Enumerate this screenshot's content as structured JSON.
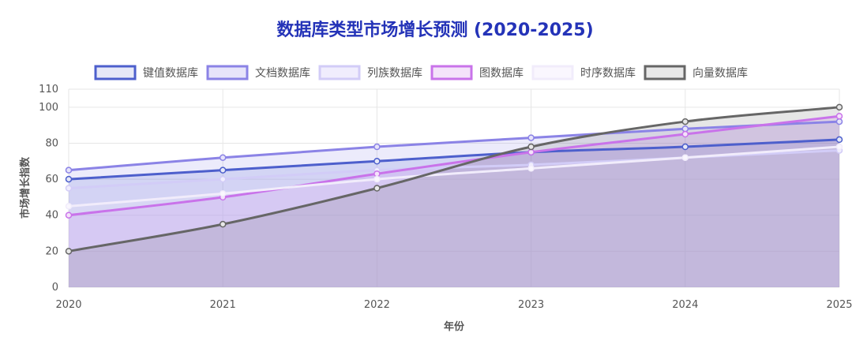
{
  "chart_data": {
    "type": "area",
    "title": "数据库类型市场增长预测 (2020-2025)",
    "xlabel": "年份",
    "ylabel": "市场增长指数",
    "ylim": [
      0,
      110
    ],
    "yticks": [
      0,
      20,
      40,
      60,
      80,
      100,
      110
    ],
    "categories": [
      "2020",
      "2021",
      "2022",
      "2023",
      "2024",
      "2025"
    ],
    "legend_position": "top",
    "grid": true,
    "series": [
      {
        "name": "键值数据库",
        "values": [
          60,
          65,
          70,
          75,
          78,
          82
        ],
        "color": "#4d5fcc",
        "fill": "#e6e8f7"
      },
      {
        "name": "文档数据库",
        "values": [
          65,
          72,
          78,
          83,
          88,
          92
        ],
        "color": "#8b83e6",
        "fill": "#e7e4fa"
      },
      {
        "name": "列族数据库",
        "values": [
          55,
          60,
          65,
          68,
          72,
          76
        ],
        "color": "#d2ccf7",
        "fill": "#f0edfd"
      },
      {
        "name": "图数据库",
        "values": [
          40,
          50,
          63,
          75,
          85,
          95
        ],
        "color": "#c973ea",
        "fill": "#f4e3fa"
      },
      {
        "name": "时序数据库",
        "values": [
          45,
          52,
          60,
          66,
          72,
          78
        ],
        "color": "#f1ecfb",
        "fill": "#faf7fe"
      },
      {
        "name": "向量数据库",
        "values": [
          20,
          35,
          55,
          78,
          92,
          100
        ],
        "color": "#666666",
        "fill": "#e8e8e8"
      }
    ]
  }
}
